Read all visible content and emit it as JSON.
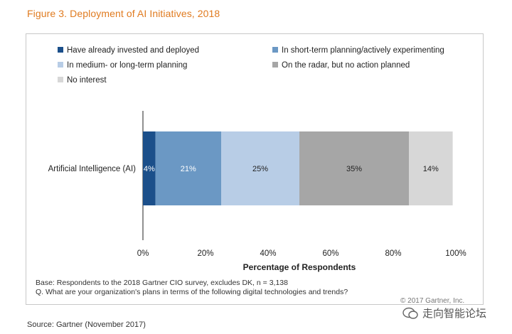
{
  "figure_title": "Figure 3. Deployment of AI Initiatives, 2018",
  "chart_data": {
    "type": "bar",
    "orientation": "horizontal",
    "stacked": true,
    "categories": [
      "Artificial Intelligence (AI)"
    ],
    "series": [
      {
        "name": "Have already invested and deployed",
        "values": [
          4
        ],
        "label": "4%",
        "color": "#1b4f8a",
        "label_color": "#ffffff"
      },
      {
        "name": "In short-term planning/actively experimenting",
        "values": [
          21
        ],
        "label": "21%",
        "color": "#6b98c4",
        "label_color": "#ffffff"
      },
      {
        "name": "In medium- or long-term planning",
        "values": [
          25
        ],
        "label": "25%",
        "color": "#b8cde6",
        "label_color": "#222222"
      },
      {
        "name": "On the radar, but no action planned",
        "values": [
          35
        ],
        "label": "35%",
        "color": "#a6a6a6",
        "label_color": "#222222"
      },
      {
        "name": "No interest",
        "values": [
          14
        ],
        "label": "14%",
        "color": "#d7d7d7",
        "label_color": "#222222"
      }
    ],
    "xlabel": "Percentage of Respondents",
    "ylabel": "",
    "xlim": [
      0,
      100
    ],
    "xticks": [
      "0%",
      "20%",
      "40%",
      "60%",
      "80%",
      "100%"
    ],
    "legend_position": "top-left",
    "grid": false
  },
  "notes": {
    "base": "Base: Respondents to the 2018 Gartner CIO survey, excludes DK, n = 3,138",
    "question": "Q. What are your organization's plans in terms of the following digital technologies and trends?",
    "copyright": "© 2017 Gartner, Inc."
  },
  "source": "Source: Gartner (November 2017)",
  "watermark": "走向智能论坛"
}
